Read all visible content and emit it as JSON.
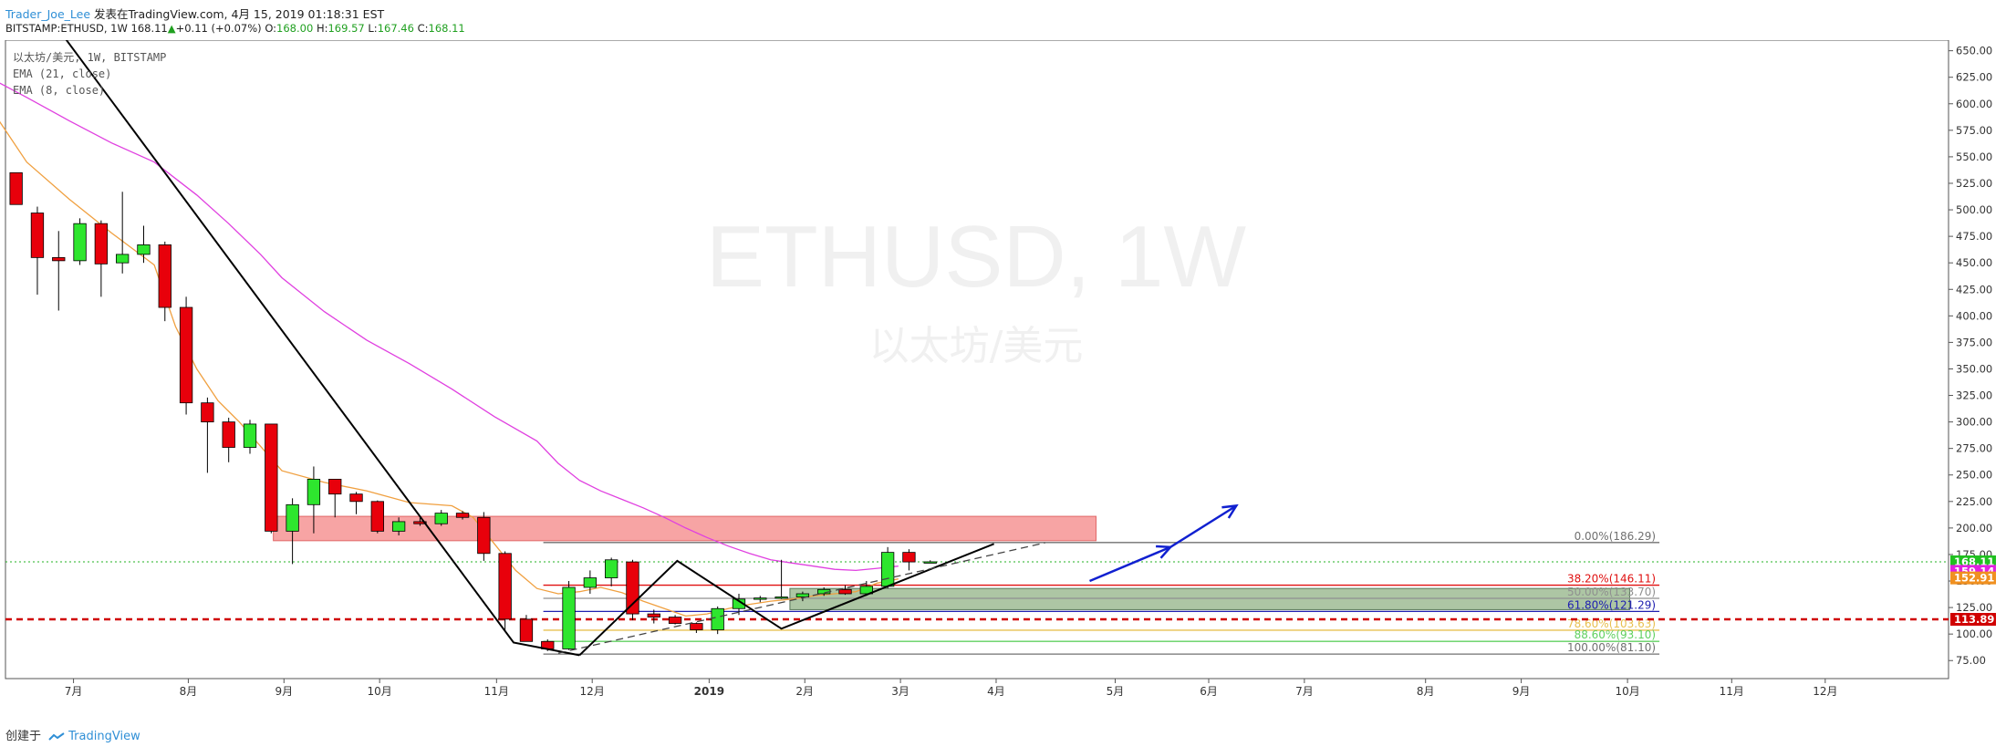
{
  "header": {
    "author": "Trader_Joe_Lee",
    "published": "发表在TradingView.com, 4月 15, 2019 01:18:31 EST",
    "symbol_line": "BITSTAMP:ETHUSD, 1W 168.11",
    "change": "+0.11 (+0.07%)",
    "o_label": "O:",
    "o": "168.00",
    "h_label": "H:",
    "h": "169.57",
    "l_label": "L:",
    "l": "167.46",
    "c_label": "C:",
    "c": "168.11"
  },
  "legend": {
    "line1": "以太坊/美元, 1W, BITSTAMP",
    "line2": "EMA (21, close)",
    "line3": "EMA (8, close)"
  },
  "footer": {
    "created": "创建于",
    "brand": "TradingView"
  },
  "colors": {
    "up": "#2ee62e",
    "down": "#e8000b",
    "ema21": "#e040e0",
    "ema8": "#f0a040",
    "zone_red": "#f7a0a0",
    "zone_green": "#a9c4a0",
    "arrow": "#1020d0"
  },
  "chart_data": {
    "type": "candlestick",
    "watermark": "ETHUSD, 1W",
    "watermark_sub": "以太坊/美元",
    "ylim": [
      58,
      660
    ],
    "yticks": [
      75,
      100,
      125,
      150,
      175,
      200,
      225,
      250,
      275,
      300,
      325,
      350,
      375,
      400,
      425,
      450,
      475,
      500,
      525,
      550,
      575,
      600,
      625,
      650
    ],
    "xlim": [
      0,
      91.4
    ],
    "xticks": [
      {
        "label": "7月",
        "x": 3.2
      },
      {
        "label": "8月",
        "x": 8.6
      },
      {
        "label": "9月",
        "x": 13.1
      },
      {
        "label": "10月",
        "x": 17.6
      },
      {
        "label": "11月",
        "x": 23.1
      },
      {
        "label": "12月",
        "x": 27.6
      },
      {
        "label": "2019",
        "x": 33.1
      },
      {
        "label": "2月",
        "x": 37.6
      },
      {
        "label": "3月",
        "x": 42.1
      },
      {
        "label": "4月",
        "x": 46.6
      },
      {
        "label": "5月",
        "x": 52.2
      },
      {
        "label": "6月",
        "x": 56.6
      },
      {
        "label": "7月",
        "x": 61.1
      },
      {
        "label": "8月",
        "x": 66.8
      },
      {
        "label": "9月",
        "x": 71.3
      },
      {
        "label": "10月",
        "x": 76.3
      },
      {
        "label": "11月",
        "x": 81.2
      },
      {
        "label": "12月",
        "x": 85.6
      }
    ],
    "candles": [
      [
        0,
        535,
        535,
        505,
        505
      ],
      [
        1,
        497,
        503,
        420,
        455
      ],
      [
        2,
        455,
        480,
        405,
        452
      ],
      [
        3,
        452,
        492,
        448,
        487
      ],
      [
        4,
        487,
        490,
        418,
        449
      ],
      [
        5,
        450,
        517,
        440,
        458
      ],
      [
        6,
        458,
        485,
        450,
        467
      ],
      [
        7,
        467,
        470,
        395,
        408
      ],
      [
        8,
        408,
        418,
        307,
        318
      ],
      [
        9,
        318,
        323,
        252,
        300
      ],
      [
        10,
        300,
        304,
        262,
        276
      ],
      [
        11,
        276,
        302,
        270,
        298
      ],
      [
        12,
        298,
        298,
        195,
        197
      ],
      [
        13,
        197,
        228,
        166,
        222
      ],
      [
        14,
        222,
        258,
        195,
        246
      ],
      [
        15,
        246,
        244,
        210,
        232
      ],
      [
        16,
        232,
        234,
        213,
        225
      ],
      [
        17,
        225,
        226,
        195,
        197
      ],
      [
        18,
        197,
        210,
        193,
        206
      ],
      [
        19,
        206,
        210,
        202,
        204
      ],
      [
        20,
        204,
        217,
        202,
        214
      ],
      [
        21,
        214,
        216,
        208,
        210
      ],
      [
        22,
        210,
        215,
        169,
        176
      ],
      [
        23,
        176,
        178,
        102,
        114
      ],
      [
        24,
        114,
        118,
        95,
        93
      ],
      [
        25,
        93,
        95,
        84,
        86
      ],
      [
        26,
        86,
        150,
        85,
        144
      ],
      [
        27,
        144,
        160,
        138,
        153
      ],
      [
        28,
        153,
        172,
        145,
        170
      ],
      [
        29,
        168,
        170,
        113,
        119
      ],
      [
        30,
        119,
        123,
        110,
        116
      ],
      [
        31,
        116,
        118,
        109,
        110
      ],
      [
        32,
        110,
        111,
        101,
        104
      ],
      [
        33,
        104,
        126,
        100,
        124
      ],
      [
        34,
        124,
        138,
        118,
        133
      ],
      [
        35,
        133,
        136,
        130,
        134
      ],
      [
        36,
        134,
        170,
        133,
        135
      ],
      [
        37,
        135,
        140,
        131,
        138
      ],
      [
        38,
        138,
        144,
        136,
        142
      ],
      [
        39,
        142,
        146,
        137,
        138
      ],
      [
        40,
        138,
        150,
        136,
        145
      ],
      [
        41,
        145,
        182,
        143,
        177
      ],
      [
        42,
        177,
        180,
        160,
        168
      ],
      [
        43,
        168,
        169.57,
        167.46,
        168.11
      ]
    ],
    "ema21": [
      [
        -0.5,
        622
      ],
      [
        1,
        606
      ],
      [
        3,
        584
      ],
      [
        5,
        563
      ],
      [
        7,
        545
      ],
      [
        9,
        514
      ],
      [
        10.5,
        487
      ],
      [
        12,
        458
      ],
      [
        13,
        436
      ],
      [
        15,
        404
      ],
      [
        17,
        377
      ],
      [
        19,
        355
      ],
      [
        21,
        331
      ],
      [
        23,
        305
      ],
      [
        25,
        282
      ],
      [
        26,
        261
      ],
      [
        27,
        245
      ],
      [
        28,
        235
      ],
      [
        29,
        227
      ],
      [
        30,
        219
      ],
      [
        31,
        210
      ],
      [
        32,
        200
      ],
      [
        33,
        191
      ],
      [
        34,
        183
      ],
      [
        35,
        176
      ],
      [
        36,
        170
      ],
      [
        37,
        167
      ],
      [
        38,
        164
      ],
      [
        39,
        161
      ],
      [
        40,
        160
      ],
      [
        41,
        162
      ],
      [
        42,
        164
      ]
    ],
    "ema8": [
      [
        -0.5,
        590
      ],
      [
        1,
        545
      ],
      [
        3,
        510
      ],
      [
        5,
        478
      ],
      [
        7,
        448
      ],
      [
        8,
        390
      ],
      [
        9,
        350
      ],
      [
        10,
        320
      ],
      [
        11,
        300
      ],
      [
        12,
        277
      ],
      [
        13,
        254
      ],
      [
        15,
        243
      ],
      [
        17,
        235
      ],
      [
        19,
        224
      ],
      [
        21,
        221
      ],
      [
        22,
        210
      ],
      [
        23,
        185
      ],
      [
        24,
        160
      ],
      [
        25,
        143
      ],
      [
        26,
        138
      ],
      [
        27,
        140
      ],
      [
        28,
        144
      ],
      [
        29,
        139
      ],
      [
        30,
        131
      ],
      [
        31,
        124
      ],
      [
        32,
        117
      ],
      [
        33,
        119
      ],
      [
        34,
        124
      ],
      [
        35,
        128
      ],
      [
        36,
        131
      ],
      [
        37,
        133
      ],
      [
        38,
        136
      ],
      [
        39,
        138
      ],
      [
        40,
        140
      ],
      [
        41,
        148
      ],
      [
        42,
        152
      ]
    ],
    "fib": {
      "x_start": 25.3,
      "x_end": 77.8,
      "levels": [
        {
          "label": "0.00%(186.29)",
          "price": 186.29,
          "color": "#707070"
        },
        {
          "label": "38.20%(146.11)",
          "price": 146.11,
          "color": "#e01010"
        },
        {
          "label": "50.00%(133.70)",
          "price": 133.7,
          "color": "#909090"
        },
        {
          "label": "61.80%(121.29)",
          "price": 121.29,
          "color": "#2020b0"
        },
        {
          "label": "78.60%(103.63)",
          "price": 103.63,
          "color": "#e8c050"
        },
        {
          "label": "88.60%(93.10)",
          "price": 93.1,
          "color": "#60d060"
        },
        {
          "label": "100.00%(81.10)",
          "price": 81.1,
          "color": "#707070"
        }
      ]
    },
    "zones": [
      {
        "x1": 12.6,
        "x2": 51.3,
        "y1": 188,
        "y2": 211,
        "kind": "red"
      },
      {
        "x1": 36.9,
        "x2": 76.4,
        "y1": 123,
        "y2": 143,
        "kind": "green"
      }
    ],
    "support_line": {
      "price": 113.89,
      "color": "#d00000"
    },
    "current_price_line": 168.11,
    "price_labels": [
      {
        "text": "168.11",
        "price": 168.11,
        "bg": "#20c020"
      },
      {
        "text": "159.14",
        "price": 159.14,
        "bg": "#e020e0"
      },
      {
        "text": "152.91",
        "price": 152.91,
        "bg": "#f09020"
      },
      {
        "text": "113.89",
        "price": 113.89,
        "bg": "#d00000"
      }
    ],
    "trendline": [
      [
        2.5,
        670
      ],
      [
        23.9,
        92
      ],
      [
        27,
        80
      ]
    ],
    "pattern_lines": [
      [
        [
          27,
          80
        ],
        [
          31.6,
          169
        ],
        [
          36.5,
          105
        ],
        [
          46.5,
          185
        ]
      ]
    ],
    "dashed_line": [
      [
        26,
        82
      ],
      [
        48.9,
        186
      ]
    ],
    "arrow": [
      [
        51,
        150
      ],
      [
        54.8,
        182
      ],
      [
        57.9,
        221
      ]
    ]
  }
}
